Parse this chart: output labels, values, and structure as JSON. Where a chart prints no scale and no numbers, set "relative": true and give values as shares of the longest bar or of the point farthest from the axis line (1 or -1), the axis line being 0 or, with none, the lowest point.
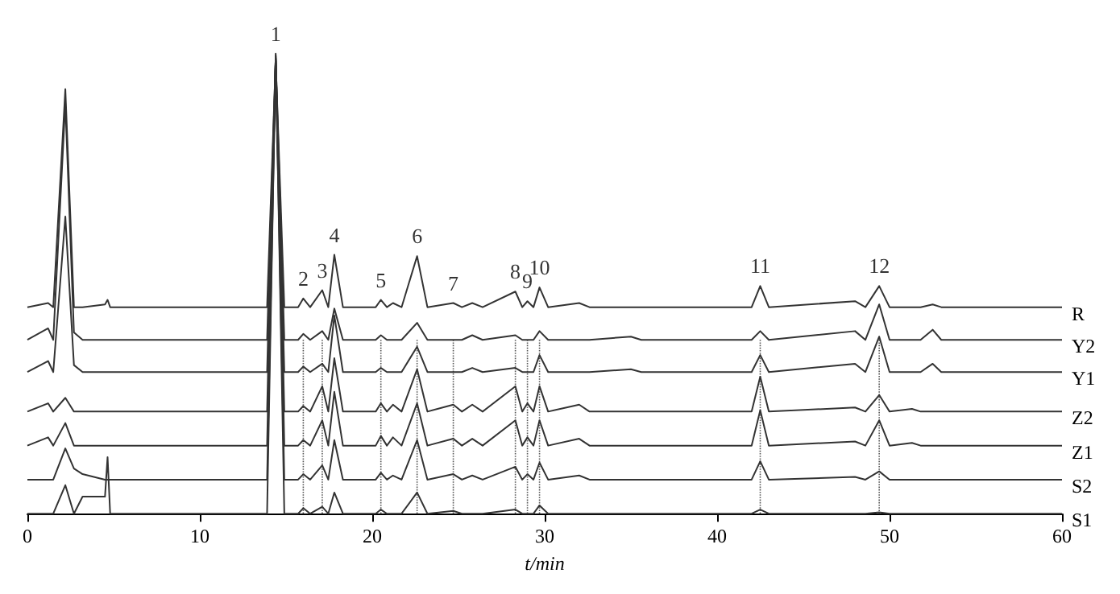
{
  "chart_data": {
    "type": "line",
    "relative": true,
    "xlabel": "t/min",
    "xlim": [
      0,
      60
    ],
    "xticks": [
      0,
      10,
      20,
      30,
      40,
      50,
      60
    ],
    "grid": false,
    "legend": false,
    "marker": "none",
    "line_style": "solid",
    "x": [
      0,
      1.2,
      1.5,
      2.2,
      2.7,
      3.2,
      4.5,
      4.65,
      4.8,
      13.9,
      14.4,
      14.9,
      15.7,
      16.0,
      16.4,
      17.1,
      17.45,
      17.8,
      18.3,
      20.2,
      20.5,
      20.85,
      21.2,
      21.7,
      22.6,
      23.2,
      24.7,
      25.2,
      25.8,
      26.4,
      28.3,
      28.7,
      29.0,
      29.35,
      29.7,
      30.2,
      32.0,
      32.6,
      35.0,
      35.6,
      42.0,
      42.5,
      43.0,
      48.0,
      48.6,
      49.4,
      50.0,
      51.3,
      51.8,
      52.5,
      53.0,
      60
    ],
    "series": [
      {
        "name": "R",
        "color": "#333333",
        "values": [
          0.449,
          0.458,
          0.449,
          0.923,
          0.449,
          0.449,
          0.455,
          0.465,
          0.449,
          0.449,
          0.985,
          0.449,
          0.449,
          0.468,
          0.449,
          0.486,
          0.449,
          0.563,
          0.449,
          0.449,
          0.465,
          0.449,
          0.458,
          0.449,
          0.56,
          0.449,
          0.458,
          0.449,
          0.458,
          0.449,
          0.483,
          0.449,
          0.462,
          0.449,
          0.492,
          0.449,
          0.458,
          0.449,
          0.449,
          0.449,
          0.449,
          0.495,
          0.449,
          0.462,
          0.449,
          0.495,
          0.449,
          0.449,
          0.449,
          0.455,
          0.449,
          0.449
        ]
      },
      {
        "name": "Y2",
        "color": "#333333",
        "values": [
          0.378,
          0.403,
          0.378,
          0.892,
          0.394,
          0.378,
          0.378,
          0.378,
          0.378,
          0.378,
          0.991,
          0.378,
          0.378,
          0.391,
          0.378,
          0.397,
          0.378,
          0.446,
          0.378,
          0.378,
          0.388,
          0.378,
          0.378,
          0.378,
          0.415,
          0.378,
          0.378,
          0.378,
          0.388,
          0.378,
          0.388,
          0.378,
          0.378,
          0.378,
          0.397,
          0.378,
          0.378,
          0.378,
          0.385,
          0.378,
          0.378,
          0.397,
          0.378,
          0.397,
          0.378,
          0.455,
          0.378,
          0.378,
          0.378,
          0.4,
          0.378,
          0.378
        ]
      },
      {
        "name": "Y1",
        "color": "#333333",
        "values": [
          0.308,
          0.332,
          0.308,
          0.646,
          0.323,
          0.308,
          0.308,
          0.308,
          0.308,
          0.308,
          0.988,
          0.308,
          0.308,
          0.32,
          0.308,
          0.326,
          0.308,
          0.431,
          0.308,
          0.308,
          0.317,
          0.308,
          0.308,
          0.308,
          0.363,
          0.308,
          0.308,
          0.308,
          0.317,
          0.308,
          0.317,
          0.308,
          0.308,
          0.308,
          0.345,
          0.308,
          0.308,
          0.308,
          0.314,
          0.308,
          0.308,
          0.345,
          0.308,
          0.326,
          0.308,
          0.385,
          0.308,
          0.308,
          0.308,
          0.326,
          0.308,
          0.308
        ]
      },
      {
        "name": "Z2",
        "color": "#333333",
        "values": [
          0.222,
          0.24,
          0.222,
          0.252,
          0.222,
          0.222,
          0.222,
          0.222,
          0.222,
          0.222,
          0.994,
          0.222,
          0.222,
          0.234,
          0.222,
          0.277,
          0.222,
          0.338,
          0.222,
          0.222,
          0.24,
          0.222,
          0.237,
          0.222,
          0.314,
          0.222,
          0.237,
          0.222,
          0.237,
          0.222,
          0.277,
          0.222,
          0.24,
          0.222,
          0.277,
          0.222,
          0.237,
          0.222,
          0.222,
          0.222,
          0.222,
          0.298,
          0.222,
          0.231,
          0.222,
          0.258,
          0.222,
          0.228,
          0.222,
          0.222,
          0.222,
          0.222
        ]
      },
      {
        "name": "Z1",
        "color": "#333333",
        "values": [
          0.148,
          0.166,
          0.148,
          0.197,
          0.148,
          0.148,
          0.148,
          0.148,
          0.148,
          0.148,
          0.997,
          0.148,
          0.148,
          0.16,
          0.148,
          0.203,
          0.148,
          0.265,
          0.148,
          0.148,
          0.169,
          0.148,
          0.166,
          0.148,
          0.24,
          0.148,
          0.163,
          0.148,
          0.163,
          0.148,
          0.203,
          0.148,
          0.166,
          0.148,
          0.203,
          0.148,
          0.163,
          0.148,
          0.148,
          0.148,
          0.148,
          0.225,
          0.148,
          0.157,
          0.148,
          0.203,
          0.148,
          0.154,
          0.148,
          0.148,
          0.148,
          0.148
        ]
      },
      {
        "name": "S2",
        "color": "#333333",
        "values": [
          0.074,
          0.074,
          0.074,
          0.142,
          0.098,
          0.086,
          0.074,
          0.074,
          0.074,
          0.074,
          0.985,
          0.074,
          0.074,
          0.086,
          0.074,
          0.105,
          0.074,
          0.16,
          0.074,
          0.074,
          0.089,
          0.074,
          0.083,
          0.074,
          0.16,
          0.074,
          0.086,
          0.074,
          0.083,
          0.074,
          0.102,
          0.074,
          0.086,
          0.074,
          0.111,
          0.074,
          0.083,
          0.074,
          0.074,
          0.074,
          0.074,
          0.114,
          0.074,
          0.08,
          0.074,
          0.092,
          0.074,
          0.074,
          0.074,
          0.074,
          0.074,
          0.074
        ]
      },
      {
        "name": "S1",
        "color": "#333333",
        "values": [
          0,
          0,
          0,
          0.062,
          0,
          0.037,
          0.037,
          0.123,
          0,
          0,
          1,
          0,
          0,
          0.012,
          0,
          0.015,
          0,
          0.046,
          0,
          0,
          0.009,
          0,
          0,
          0,
          0.046,
          0,
          0.006,
          0,
          0,
          0,
          0.009,
          0,
          0,
          0,
          0.018,
          0,
          0,
          0,
          0,
          0,
          0,
          0.009,
          0,
          0,
          0,
          0.003,
          0,
          0,
          0,
          0,
          0,
          0
        ]
      }
    ],
    "annotations": [
      {
        "text": "1",
        "x": 14.4,
        "y": 1
      },
      {
        "text": "2",
        "x": 16.0,
        "y": 0.468
      },
      {
        "text": "3",
        "x": 17.1,
        "y": 0.486
      },
      {
        "text": "4",
        "x": 17.8,
        "y": 0.563
      },
      {
        "text": "5",
        "x": 20.5,
        "y": 0.465
      },
      {
        "text": "6",
        "x": 22.6,
        "y": 0.56
      },
      {
        "text": "7",
        "x": 24.7,
        "y": 0.458
      },
      {
        "text": "8",
        "x": 28.3,
        "y": 0.483
      },
      {
        "text": "9",
        "x": 29.0,
        "y": 0.462
      },
      {
        "text": "10",
        "x": 29.7,
        "y": 0.492
      },
      {
        "text": "11",
        "x": 42.5,
        "y": 0.495
      },
      {
        "text": "12",
        "x": 49.4,
        "y": 0.495
      }
    ],
    "ref_lines": [
      {
        "axis": "x",
        "value": 16.0,
        "line_style": "dotted"
      },
      {
        "axis": "x",
        "value": 17.1,
        "line_style": "dotted"
      },
      {
        "axis": "x",
        "value": 20.5,
        "line_style": "dotted"
      },
      {
        "axis": "x",
        "value": 22.6,
        "line_style": "dotted"
      },
      {
        "axis": "x",
        "value": 24.7,
        "line_style": "dotted"
      },
      {
        "axis": "x",
        "value": 28.3,
        "line_style": "dotted"
      },
      {
        "axis": "x",
        "value": 29.0,
        "line_style": "dotted"
      },
      {
        "axis": "x",
        "value": 29.7,
        "line_style": "dotted"
      },
      {
        "axis": "x",
        "value": 42.5,
        "line_style": "dotted"
      },
      {
        "axis": "x",
        "value": 49.4,
        "line_style": "dotted"
      }
    ]
  }
}
